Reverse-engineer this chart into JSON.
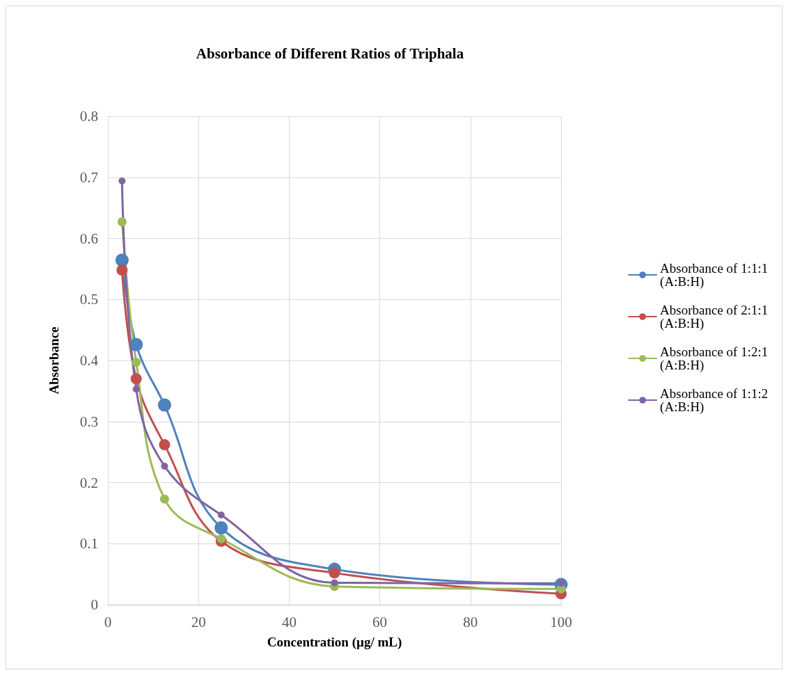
{
  "chart_data": {
    "type": "line",
    "title": "Absorbance of Different Ratios of Triphala",
    "xlabel": "Concentration (µg/ mL)",
    "ylabel": "Absorbance",
    "x": [
      3.125,
      6.25,
      12.5,
      25,
      50,
      100
    ],
    "series": [
      {
        "name": "Absorbance of 1:1:1 (A:B:H)",
        "color": "#4f81bd",
        "values": [
          0.564,
          0.426,
          0.327,
          0.126,
          0.058,
          0.033
        ]
      },
      {
        "name": "Absorbance of 2:1:1 (A:B:H)",
        "color": "#c0504d",
        "values": [
          0.548,
          0.37,
          0.262,
          0.104,
          0.052,
          0.018
        ]
      },
      {
        "name": "Absorbance of 1:2:1 (A:B:H)",
        "color": "#9bbb59",
        "values": [
          0.627,
          0.397,
          0.173,
          0.108,
          0.03,
          0.026
        ]
      },
      {
        "name": "Absorbance of 1:1:2 (A:B:H)",
        "color": "#8064a2",
        "values": [
          0.694,
          0.353,
          0.227,
          0.147,
          0.036,
          0.035
        ]
      }
    ],
    "xlim": [
      0,
      100
    ],
    "xticks": [
      0,
      20,
      40,
      60,
      80,
      100
    ],
    "ylim": [
      0,
      0.8
    ],
    "yticks": [
      0,
      0.1,
      0.2,
      0.3,
      0.4,
      0.5,
      0.6,
      0.7,
      0.8
    ],
    "grid": true,
    "legend": "right",
    "marker": "circle",
    "line_style": "solid"
  }
}
